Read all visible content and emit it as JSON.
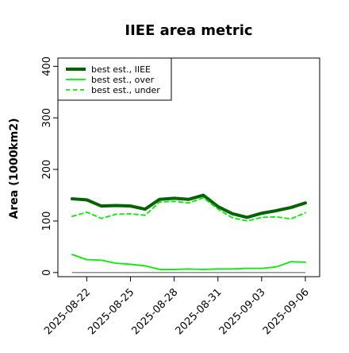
{
  "chart_data": {
    "type": "line",
    "title": "IIEE area metric",
    "xlabel": "",
    "ylabel": "Area (1000km2)",
    "x": [
      "2025-08-21",
      "2025-08-22",
      "2025-08-23",
      "2025-08-24",
      "2025-08-25",
      "2025-08-26",
      "2025-08-27",
      "2025-08-28",
      "2025-08-29",
      "2025-08-30",
      "2025-08-31",
      "2025-09-01",
      "2025-09-02",
      "2025-09-03",
      "2025-09-04",
      "2025-09-05",
      "2025-09-06"
    ],
    "xticks": [
      "2025-08-22",
      "2025-08-25",
      "2025-08-28",
      "2025-08-31",
      "2025-09-03",
      "2025-09-06"
    ],
    "ylim": [
      -8,
      416
    ],
    "yticks": [
      0,
      100,
      200,
      300,
      400
    ],
    "legend_position": "top-left",
    "grid": false,
    "series": [
      {
        "name": "best est., IIEE",
        "color": "#006400",
        "style": "solid-thick",
        "values": [
          143,
          141,
          129,
          130,
          129,
          123,
          142,
          144,
          142,
          150,
          128,
          114,
          107,
          115,
          120,
          126,
          135
        ]
      },
      {
        "name": "best est., over",
        "color": "#00ee00",
        "style": "solid",
        "values": [
          35,
          25,
          24,
          18,
          16,
          13,
          6,
          6,
          7,
          6,
          7,
          7,
          8,
          8,
          11,
          21,
          20
        ]
      },
      {
        "name": "best est., under",
        "color": "#00ee00",
        "style": "dashed",
        "values": [
          109,
          117,
          105,
          113,
          114,
          111,
          137,
          138,
          135,
          145,
          123,
          106,
          100,
          107,
          108,
          104,
          116
        ]
      }
    ],
    "baseline": {
      "value": 0,
      "color": "#666666"
    }
  }
}
